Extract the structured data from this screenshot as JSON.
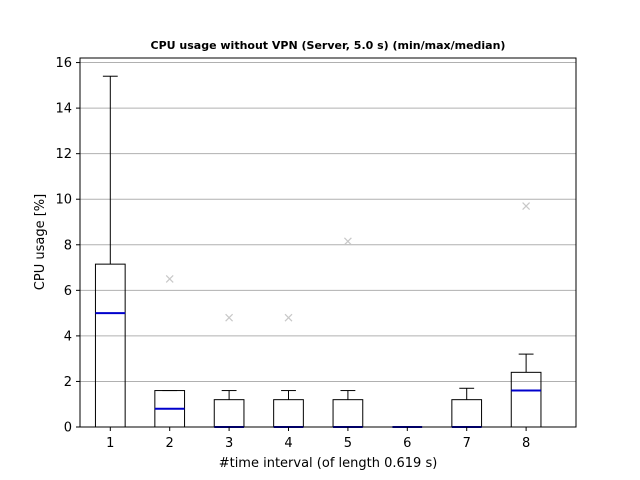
{
  "chart_data": {
    "type": "box",
    "title": "CPU usage without VPN (Server, 5.0 s) (min/max/median)",
    "xlabel": "#time interval (of length 0.619 s)",
    "ylabel": "CPU usage [%]",
    "ylim": [
      0,
      16.2
    ],
    "yticks": [
      0,
      2,
      4,
      6,
      8,
      10,
      12,
      14,
      16
    ],
    "grid": "y",
    "categories": [
      "1",
      "2",
      "3",
      "4",
      "5",
      "6",
      "7",
      "8"
    ],
    "boxes": [
      {
        "label": "1",
        "q1": 0,
        "median": 5.0,
        "q3": 7.15,
        "whisker_low": 0,
        "whisker_high": 15.4,
        "outliers": []
      },
      {
        "label": "2",
        "q1": 0,
        "median": 0.8,
        "q3": 1.6,
        "whisker_low": 0,
        "whisker_high": 1.6,
        "outliers": [
          6.5
        ]
      },
      {
        "label": "3",
        "q1": 0,
        "median": 0,
        "q3": 1.2,
        "whisker_low": 0,
        "whisker_high": 1.6,
        "outliers": [
          4.8
        ]
      },
      {
        "label": "4",
        "q1": 0,
        "median": 0,
        "q3": 1.2,
        "whisker_low": 0,
        "whisker_high": 1.6,
        "outliers": [
          4.8
        ]
      },
      {
        "label": "5",
        "q1": 0,
        "median": 0,
        "q3": 1.2,
        "whisker_low": 0,
        "whisker_high": 1.6,
        "outliers": [
          8.15
        ]
      },
      {
        "label": "6",
        "q1": 0,
        "median": 0,
        "q3": 0,
        "whisker_low": 0,
        "whisker_high": 0,
        "outliers": []
      },
      {
        "label": "7",
        "q1": 0,
        "median": 0,
        "q3": 1.2,
        "whisker_low": 0,
        "whisker_high": 1.7,
        "outliers": []
      },
      {
        "label": "8",
        "q1": 0,
        "median": 1.6,
        "q3": 2.4,
        "whisker_low": 0,
        "whisker_high": 3.2,
        "outliers": [
          9.7
        ]
      }
    ],
    "colors": {
      "box": "#000000",
      "median": "#0000cc",
      "outlier": "#c8c8c8",
      "grid": "#b0b0b0"
    }
  }
}
